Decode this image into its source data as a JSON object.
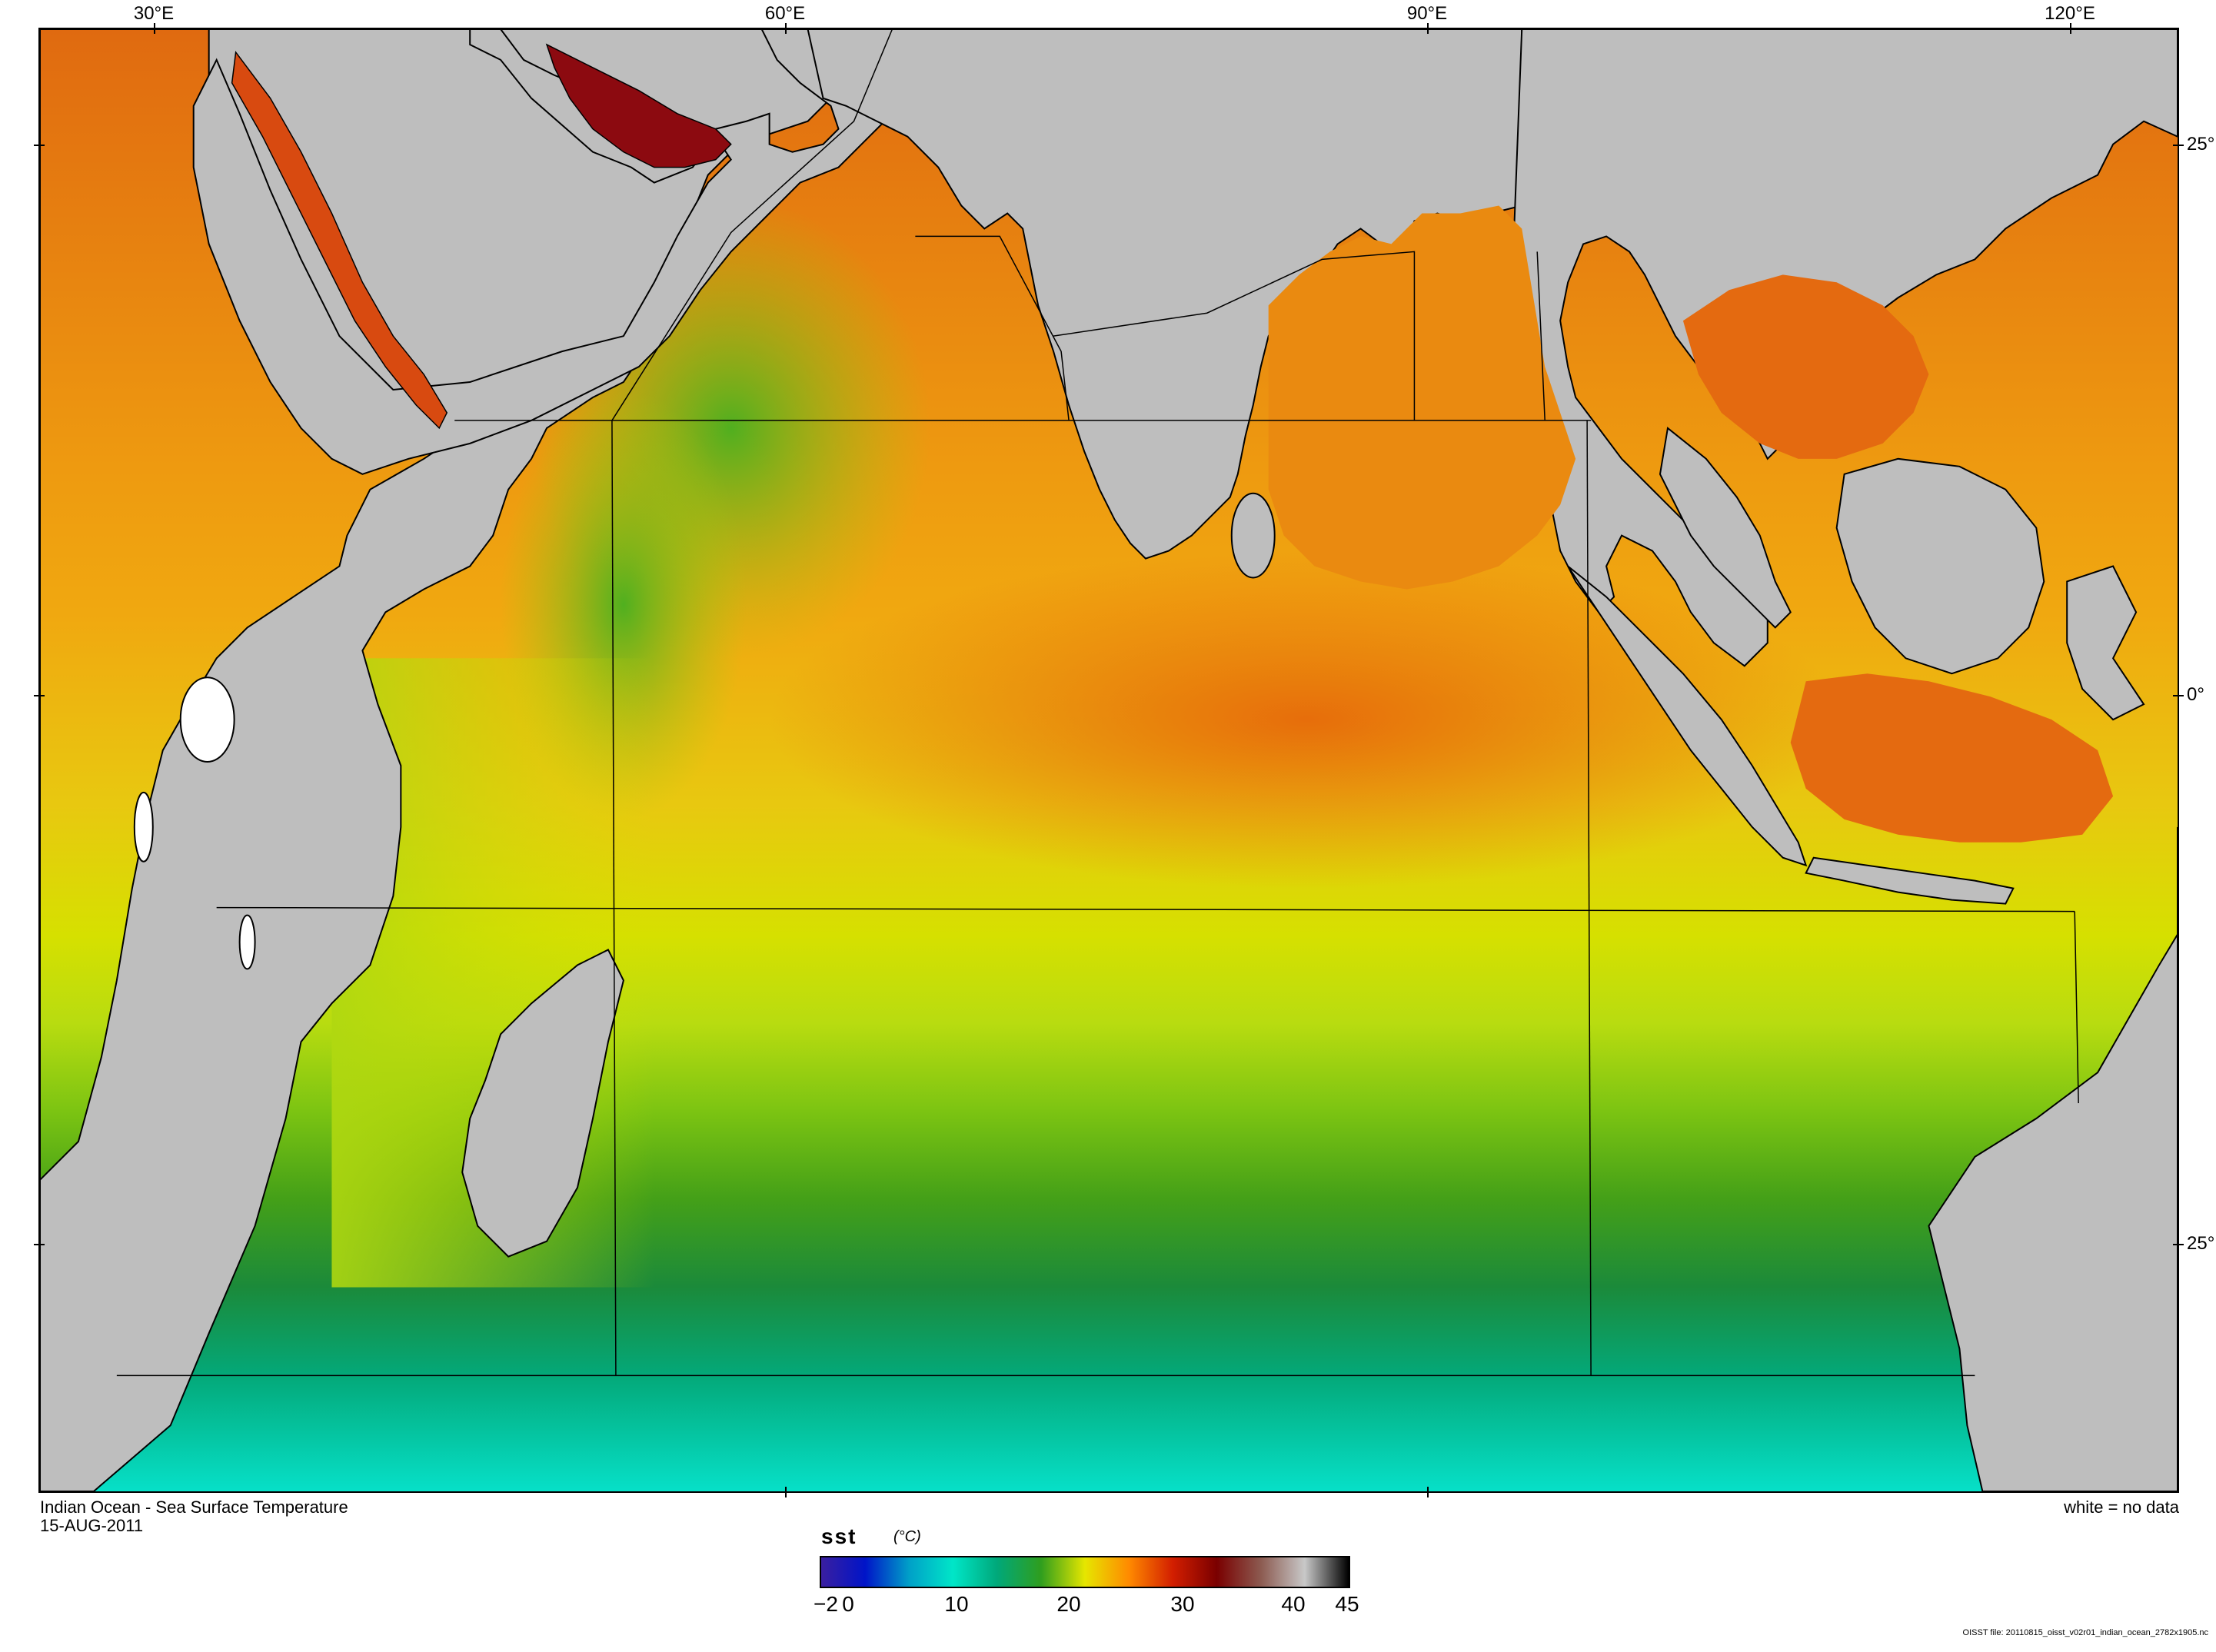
{
  "map": {
    "title": "Indian Ocean - Sea Surface Temperature",
    "date": "15-AUG-2011",
    "no_data_note": "white = no data",
    "variable": "sst",
    "units": "(°C)",
    "longitude_labels": [
      "30°E",
      "60°E",
      "90°E",
      "120°E"
    ],
    "latitude_labels": [
      "25°",
      "0°",
      "25°"
    ],
    "colorbar": {
      "ticks": [
        "−2",
        "0",
        "10",
        "20",
        "30",
        "40",
        "45"
      ],
      "stops": [
        "#3a1fa0",
        "#0014c8",
        "#00a0c8",
        "#00e6c8",
        "#00a87a",
        "#2f9e1e",
        "#e6e600",
        "#ff8a00",
        "#d21e00",
        "#7a0000",
        "#8c5a50",
        "#c8c8c8",
        "#000000"
      ]
    },
    "colors": {
      "land": "#bebebe",
      "coastline": "#000000",
      "no_data": "#ffffff"
    },
    "file_note": "OISST file: 20110815_oisst_v02r01_indian_ocean_2782x1905.nc"
  }
}
